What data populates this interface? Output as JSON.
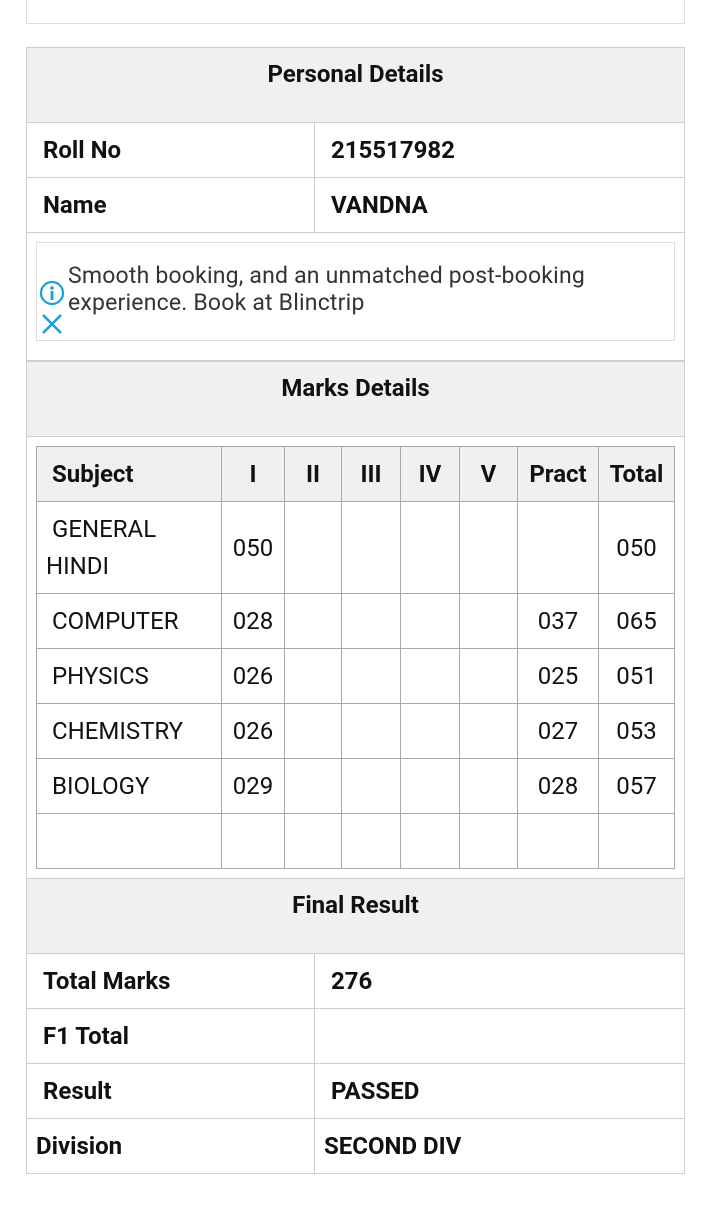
{
  "personal_details": {
    "title": "Personal Details",
    "rows": [
      [
        "Roll No",
        "215517982"
      ],
      [
        "Name",
        "VANDNA"
      ]
    ]
  },
  "ad": {
    "text": "Smooth booking, and an unmatched post-booking experience. Book at Blinctrip"
  },
  "marks_details": {
    "title": "Marks Details",
    "columns": [
      "Subject",
      "I",
      "II",
      "III",
      "IV",
      "V",
      "Pract",
      "Total"
    ],
    "rows": [
      [
        "GENERAL HINDI",
        "050",
        null,
        null,
        null,
        null,
        null,
        "050"
      ],
      [
        "COMPUTER",
        "028",
        null,
        null,
        null,
        null,
        "037",
        "065"
      ],
      [
        "PHYSICS",
        "026",
        null,
        null,
        null,
        null,
        "025",
        "051"
      ],
      [
        "CHEMISTRY",
        "026",
        null,
        null,
        null,
        null,
        "027",
        "053"
      ],
      [
        "BIOLOGY",
        "029",
        null,
        null,
        null,
        null,
        "028",
        "057"
      ]
    ]
  },
  "final_result": {
    "title": "Final Result",
    "rows": [
      [
        "Total Marks",
        "276"
      ],
      [
        "F1 Total",
        null
      ],
      [
        "Result",
        "PASSED"
      ],
      [
        "Division",
        "SECOND DIV"
      ]
    ]
  }
}
